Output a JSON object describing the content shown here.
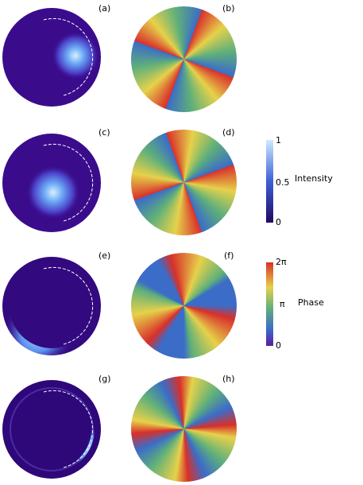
{
  "panel_labels": [
    "(a)",
    "(b)",
    "(c)",
    "(d)",
    "(e)",
    "(f)",
    "(g)",
    "(h)"
  ],
  "colorbars": [
    {
      "title": "Intensity",
      "ticks": [
        "1",
        "0.5",
        "0"
      ]
    },
    {
      "title": "Phase",
      "ticks": [
        "2π",
        "π",
        "0"
      ]
    }
  ]
}
